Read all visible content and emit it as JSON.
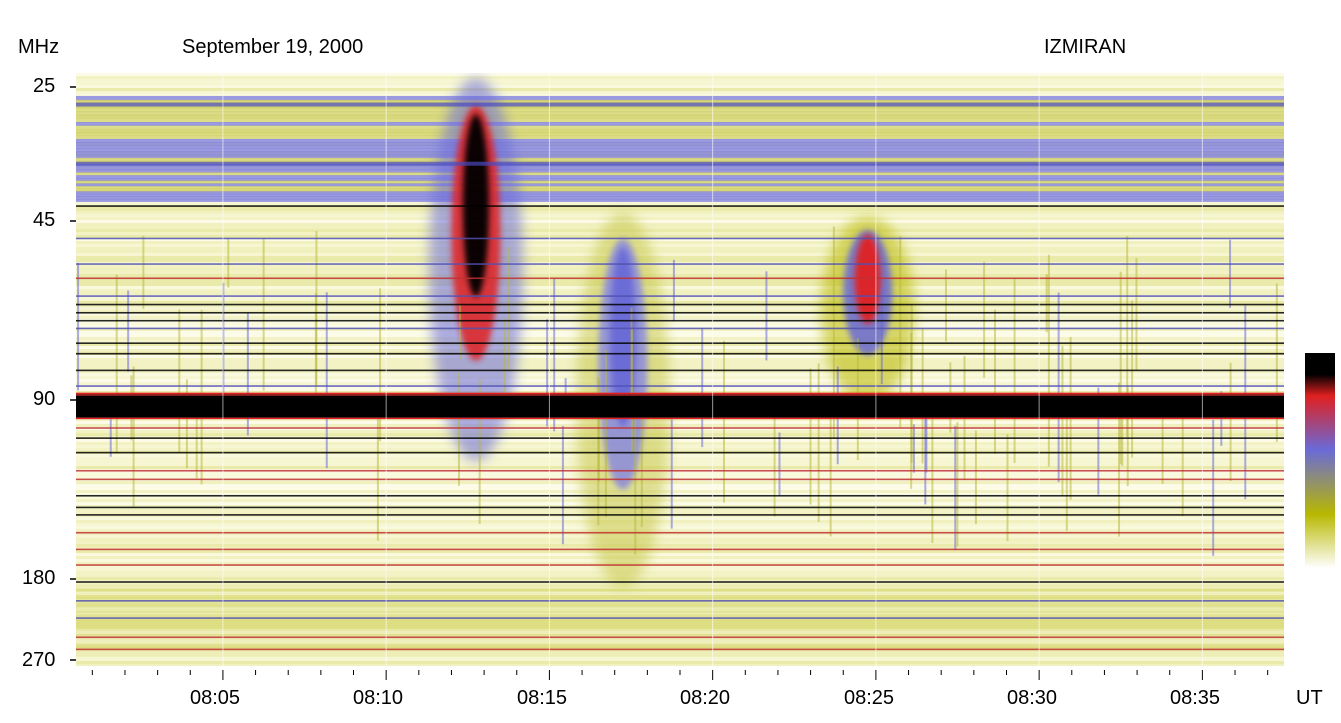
{
  "header": {
    "unit_label": "MHz",
    "date": "September 19, 2000",
    "observatory": "IZMIRAN"
  },
  "chart_data": {
    "type": "heatmap",
    "title": "September 19, 2000",
    "source": "IZMIRAN",
    "xlabel": "UT",
    "ylabel": "MHz",
    "x_range": [
      "08:00:30",
      "08:37:30"
    ],
    "y_ticks": [
      25,
      45,
      90,
      180,
      270
    ],
    "y_tick_labels": [
      "25",
      "45",
      "90",
      "180",
      "270"
    ],
    "x_ticks": [
      "08:05",
      "08:10",
      "08:15",
      "08:20",
      "08:25",
      "08:30",
      "08:35"
    ],
    "y_scale": "log",
    "colorbar": {
      "position": "right",
      "colors": [
        "#ffffff",
        "#b8b800",
        "#6a6ad8",
        "#e02020",
        "#000000"
      ]
    },
    "bursts": [
      {
        "start": "08:11:30",
        "end": "08:14:00",
        "freq_low": 25,
        "freq_high": 110,
        "intensity": "strong"
      },
      {
        "start": "08:23:30",
        "end": "08:26:00",
        "freq_low": 45,
        "freq_high": 90,
        "intensity": "medium"
      },
      {
        "start": "08:16:00",
        "end": "08:18:30",
        "freq_low": 45,
        "freq_high": 180,
        "intensity": "weak"
      }
    ],
    "interference_bands": [
      {
        "freq": 92,
        "intensity": "saturated"
      },
      {
        "freq": 27,
        "intensity": "medium"
      },
      {
        "freq": 35,
        "intensity": "medium"
      }
    ]
  }
}
